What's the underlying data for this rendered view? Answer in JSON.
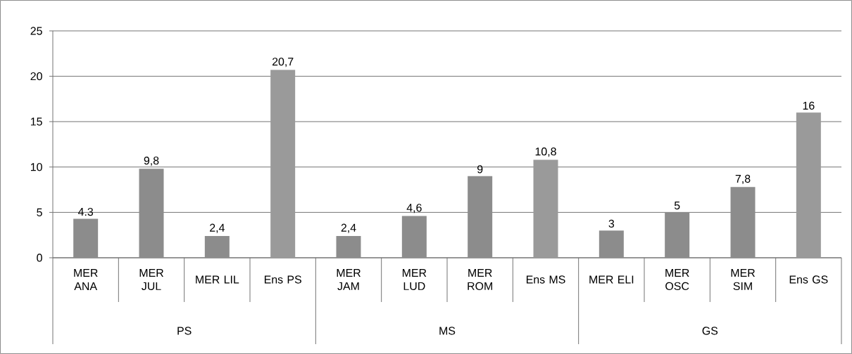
{
  "chart_data": {
    "type": "bar",
    "categories": [
      "MER ANA",
      "MER JUL",
      "MER LIL",
      "Ens PS",
      "MER JAM",
      "MER LUD",
      "MER ROM",
      "Ens MS",
      "MER ELI",
      "MER OSC",
      "MER SIM",
      "Ens GS"
    ],
    "values": [
      4.3,
      9.8,
      2.4,
      20.7,
      2.4,
      4.6,
      9,
      10.8,
      3,
      5,
      7.8,
      16
    ],
    "value_labels": [
      "4.3",
      "9,8",
      "2,4",
      "20,7",
      "2,4",
      "4,6",
      "9",
      "10,8",
      "3",
      "5",
      "7,8",
      "16"
    ],
    "colors": [
      "#8c8c8c",
      "#8c8c8c",
      "#8c8c8c",
      "#9a9a9a",
      "#8c8c8c",
      "#8c8c8c",
      "#8c8c8c",
      "#9a9a9a",
      "#8c8c8c",
      "#8c8c8c",
      "#8c8c8c",
      "#9a9a9a"
    ],
    "ylim": [
      0,
      25
    ],
    "yticks": [
      0,
      5,
      10,
      15,
      20,
      25
    ],
    "grid": "y",
    "annotations": [
      "PS",
      "MS",
      "GS"
    ]
  }
}
